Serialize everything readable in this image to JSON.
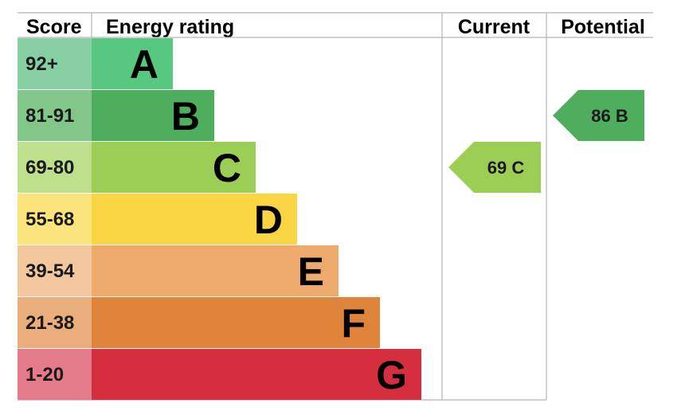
{
  "chart_data": {
    "type": "bar",
    "headers": {
      "score": "Score",
      "rating": "Energy rating",
      "current": "Current",
      "potential": "Potential"
    },
    "bands": [
      {
        "score": "92+",
        "letter": "A",
        "color": "#58c77f",
        "score_color": "#86cfa5"
      },
      {
        "score": "81-91",
        "letter": "B",
        "color": "#4fae5e",
        "score_color": "#83c68a"
      },
      {
        "score": "69-80",
        "letter": "C",
        "color": "#9ccd55",
        "score_color": "#bedf8c"
      },
      {
        "score": "55-68",
        "letter": "D",
        "color": "#f9d544",
        "score_color": "#fbe47c"
      },
      {
        "score": "39-54",
        "letter": "E",
        "color": "#eeaa6c",
        "score_color": "#f3c79e"
      },
      {
        "score": "21-38",
        "letter": "F",
        "color": "#e1843b",
        "score_color": "#eaad7c"
      },
      {
        "score": "1-20",
        "letter": "G",
        "color": "#d52f3f",
        "score_color": "#e37b8a"
      }
    ],
    "current": {
      "value": 69,
      "letter": "C",
      "band_index": 2,
      "color": "#9ccd55"
    },
    "potential": {
      "value": 86,
      "letter": "B",
      "band_index": 1,
      "color": "#4fae5e"
    }
  }
}
